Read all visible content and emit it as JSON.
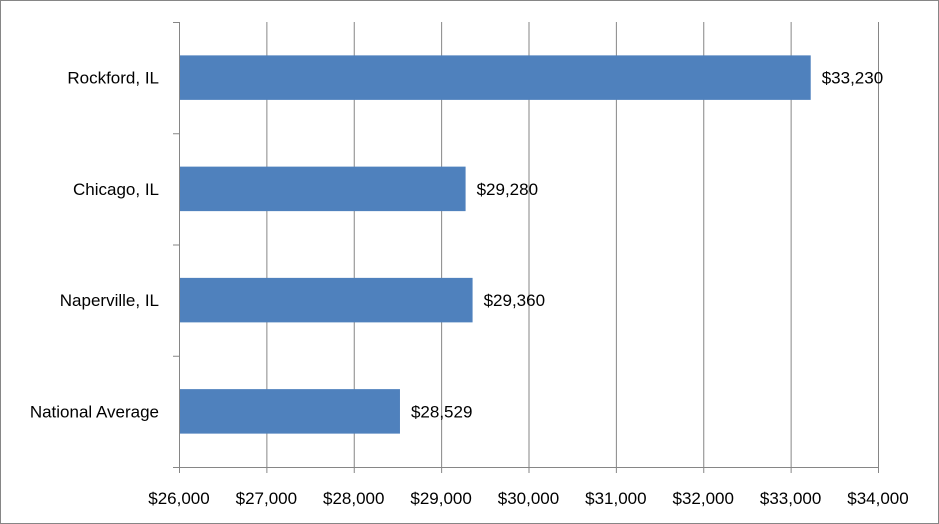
{
  "chart_data": {
    "type": "bar",
    "orientation": "horizontal",
    "title": "",
    "xlabel": "",
    "ylabel": "",
    "categories": [
      "Rockford, IL",
      "Chicago, IL",
      "Naperville, IL",
      "National Average"
    ],
    "values": [
      33230,
      29280,
      29360,
      28529
    ],
    "data_labels": [
      "$33,230",
      "$29,280",
      "$29,360",
      "$28,529"
    ],
    "xlim": [
      26000,
      34000
    ],
    "x_ticks": [
      26000,
      27000,
      28000,
      29000,
      30000,
      31000,
      32000,
      33000,
      34000
    ],
    "x_tick_labels": [
      "$26,000",
      "$27,000",
      "$28,000",
      "$29,000",
      "$30,000",
      "$31,000",
      "$32,000",
      "$33,000",
      "$34,000"
    ],
    "grid": "vertical",
    "legend": "none",
    "bar_color": "#4F81BD",
    "grid_color": "#868686"
  }
}
